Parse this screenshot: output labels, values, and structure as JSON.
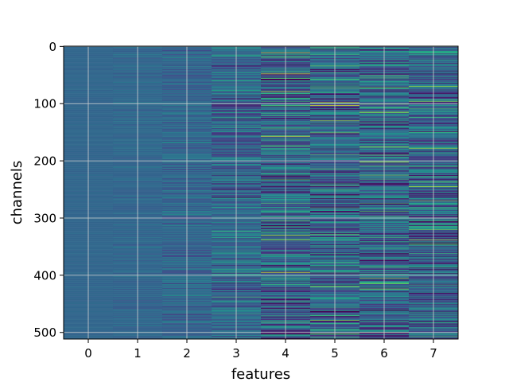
{
  "chart_data": {
    "type": "heatmap",
    "title": "",
    "xlabel": "features",
    "ylabel": "channels",
    "x_categories": [
      "0",
      "1",
      "2",
      "3",
      "4",
      "5",
      "6",
      "7"
    ],
    "x_ticks": [
      0,
      1,
      2,
      3,
      4,
      5,
      6,
      7
    ],
    "y_ticks": [
      0,
      100,
      200,
      300,
      400,
      500
    ],
    "y_tick_labels": [
      "0",
      "100",
      "200",
      "300",
      "400",
      "500"
    ],
    "n_channels": 512,
    "n_features": 8,
    "xlim": [
      -0.5,
      7.5
    ],
    "ylim": [
      511.5,
      -0.5
    ],
    "y_inverted": true,
    "grid": true,
    "colormap": "viridis",
    "value_range": [
      0,
      1
    ],
    "column_spread": [
      0.01,
      0.03,
      0.07,
      0.13,
      0.2,
      0.19,
      0.18,
      0.19
    ],
    "column_center": 0.33,
    "highlight_rows": [
      {
        "feature": 3,
        "channel": 15,
        "value": 0.62
      },
      {
        "feature": 3,
        "channel": 78,
        "value": 0.58
      },
      {
        "feature": 4,
        "channel": 48,
        "value": 0.92
      },
      {
        "feature": 4,
        "channel": 79,
        "value": 0.88
      },
      {
        "feature": 4,
        "channel": 157,
        "value": 0.95
      },
      {
        "feature": 4,
        "channel": 338,
        "value": 0.85
      },
      {
        "feature": 4,
        "channel": 395,
        "value": 0.9
      },
      {
        "feature": 5,
        "channel": 98,
        "value": 0.93
      },
      {
        "feature": 5,
        "channel": 103,
        "value": 0.96
      },
      {
        "feature": 5,
        "channel": 420,
        "value": 0.85
      },
      {
        "feature": 6,
        "channel": 115,
        "value": 0.88
      },
      {
        "feature": 6,
        "channel": 225,
        "value": 0.78
      },
      {
        "feature": 6,
        "channel": 288,
        "value": 0.72
      },
      {
        "feature": 6,
        "channel": 500,
        "value": 0.85
      },
      {
        "feature": 7,
        "channel": 70,
        "value": 0.86
      },
      {
        "feature": 7,
        "channel": 178,
        "value": 0.84
      },
      {
        "feature": 7,
        "channel": 245,
        "value": 0.88
      },
      {
        "feature": 7,
        "channel": 338,
        "value": 0.86
      }
    ],
    "colors": {
      "grid": "#d0d0d0",
      "frame": "#000000"
    }
  }
}
